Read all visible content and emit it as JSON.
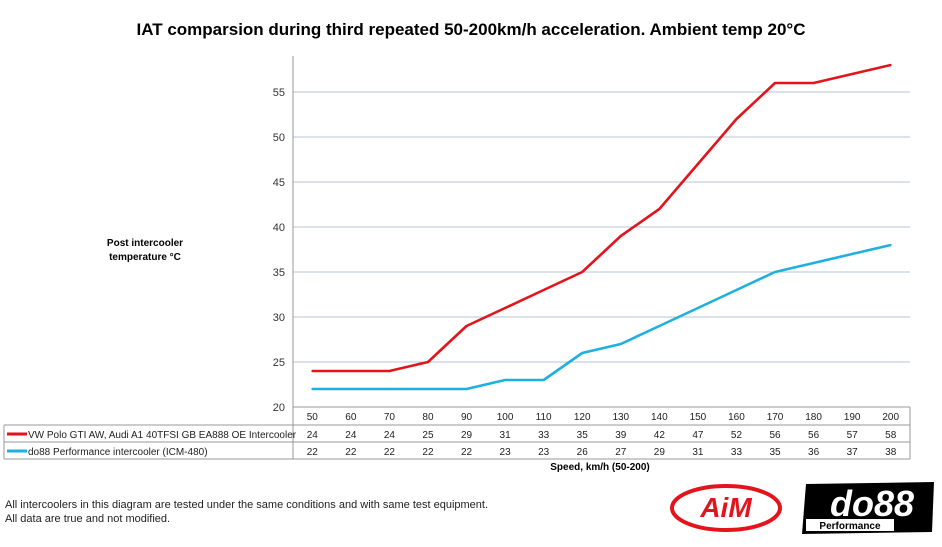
{
  "chart_data": {
    "type": "line",
    "title": "IAT comparsion during third repeated 50-200km/h acceleration. Ambient temp 20°C",
    "ylabel": "Post intercooler temperature °C",
    "xlabel": "Speed, km/h (50-200)",
    "categories": [
      "50",
      "60",
      "70",
      "80",
      "90",
      "100",
      "110",
      "120",
      "130",
      "140",
      "150",
      "160",
      "170",
      "180",
      "190",
      "200"
    ],
    "yticks": [
      20,
      25,
      30,
      35,
      40,
      45,
      50,
      55
    ],
    "ylim": [
      20,
      59
    ],
    "grid": true,
    "legend": "data-table",
    "series": [
      {
        "name": "VW Polo GTI AW, Audi A1 40TFSI GB EA888 OE Intercooler",
        "color": "#e3141b",
        "values": [
          24,
          24,
          24,
          25,
          29,
          31,
          33,
          35,
          39,
          42,
          47,
          52,
          56,
          56,
          57,
          58
        ]
      },
      {
        "name": "do88 Performance intercooler (ICM-480)",
        "color": "#1fb0e0",
        "values": [
          22,
          22,
          22,
          22,
          22,
          23,
          23,
          26,
          27,
          29,
          31,
          33,
          35,
          36,
          37,
          38
        ]
      }
    ]
  },
  "footer": {
    "line1": "All intercoolers in this diagram are tested under the same conditions and with same test equipment.",
    "line2": "All data are true and not modified."
  },
  "logos": {
    "aim": "AiM",
    "do88": "do88",
    "do88_sub": "Performance"
  }
}
